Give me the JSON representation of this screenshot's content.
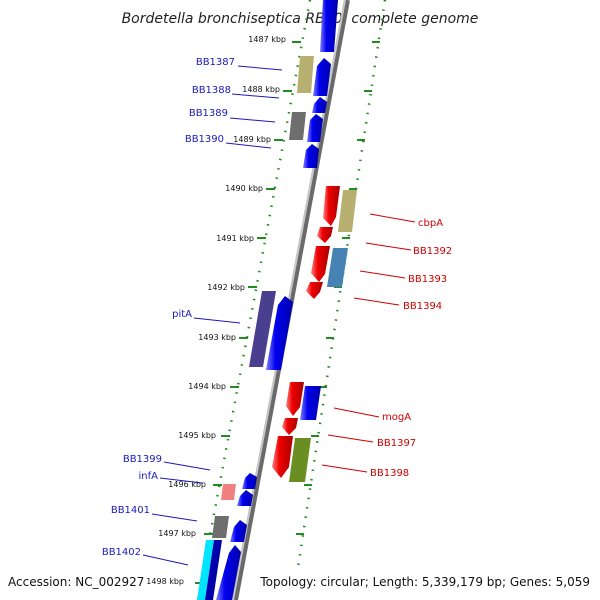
{
  "title": "Bordetella bronchiseptica RB50, complete genome",
  "footer": {
    "accession": "Accession: NC_002927",
    "summary": "Topology: circular; Length: 5,339,179 bp; Genes: 5,059"
  },
  "ticks": [
    "1487 kbp",
    "1488 kbp",
    "1489 kbp",
    "1490 kbp",
    "1491 kbp",
    "1492 kbp",
    "1493 kbp",
    "1494 kbp",
    "1495 kbp",
    "1496 kbp",
    "1497 kbp",
    "1498 kbp"
  ],
  "genes_left": [
    {
      "label": "BB1387",
      "color": "#1a1ab8"
    },
    {
      "label": "BB1388",
      "color": "#1a1ab8"
    },
    {
      "label": "BB1389",
      "color": "#1a1ab8"
    },
    {
      "label": "BB1390",
      "color": "#1a1ab8"
    },
    {
      "label": "pitA",
      "color": "#1a1ab8"
    },
    {
      "label": "BB1399",
      "color": "#1a1ab8"
    },
    {
      "label": "infA",
      "color": "#1a1ab8"
    },
    {
      "label": "BB1401",
      "color": "#1a1ab8"
    },
    {
      "label": "BB1402",
      "color": "#1a1ab8"
    }
  ],
  "genes_right": [
    {
      "label": "cbpA",
      "color": "#cc0000"
    },
    {
      "label": "BB1392",
      "color": "#cc0000"
    },
    {
      "label": "BB1393",
      "color": "#cc0000"
    },
    {
      "label": "BB1394",
      "color": "#cc0000"
    },
    {
      "label": "mogA",
      "color": "#cc0000"
    },
    {
      "label": "BB1397",
      "color": "#cc0000"
    },
    {
      "label": "BB1398",
      "color": "#cc0000"
    }
  ],
  "colors": {
    "forward_strand": "#0000ee",
    "reverse_strand": "#ee0000",
    "backbone": "#8a8a8a",
    "scale_dots": "#228b22",
    "khaki_feature": "#b8b070",
    "gray_feature": "#6e6e6e",
    "slate_feature": "#4a3e8e",
    "steel_feature": "#4682b4",
    "olive_feature": "#6b8e23",
    "pink_feature": "#f08080",
    "cyan_feature": "#00e5ff"
  }
}
